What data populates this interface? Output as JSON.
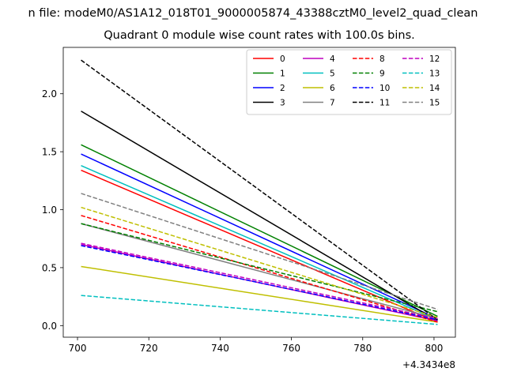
{
  "figure": {
    "suptitle": "n file: modeM0/AS1A12_018T01_9000005874_43388cztM0_level2_quad_clean"
  },
  "chart_data": {
    "type": "line",
    "title": "Quadrant 0 module wise count rates with 100.0s bins.",
    "xlabel": "",
    "ylabel": "",
    "x_offset_label": "+4.3434e8",
    "x": [
      701,
      801
    ],
    "xlim": [
      696,
      806
    ],
    "ylim": [
      -0.1,
      2.4
    ],
    "xticks": [
      700,
      720,
      740,
      760,
      780,
      800
    ],
    "yticks": [
      0.0,
      0.5,
      1.0,
      1.5,
      2.0
    ],
    "xtick_labels": [
      "700",
      "720",
      "740",
      "760",
      "780",
      "800"
    ],
    "ytick_labels": [
      "0.0",
      "0.5",
      "1.0",
      "1.5",
      "2.0"
    ],
    "grid": false,
    "legend": {
      "placement": "top-right",
      "columns": 4
    },
    "series": [
      {
        "name": "0",
        "values": [
          1.34,
          0.03
        ],
        "color": "#ff0000",
        "dash": "solid"
      },
      {
        "name": "1",
        "values": [
          1.56,
          0.08
        ],
        "color": "#008000",
        "dash": "solid"
      },
      {
        "name": "2",
        "values": [
          1.48,
          0.06
        ],
        "color": "#0000ff",
        "dash": "solid"
      },
      {
        "name": "3",
        "values": [
          1.85,
          0.04
        ],
        "color": "#000000",
        "dash": "solid"
      },
      {
        "name": "4",
        "values": [
          0.7,
          0.04
        ],
        "color": "#bf00bf",
        "dash": "solid"
      },
      {
        "name": "5",
        "values": [
          1.38,
          0.05
        ],
        "color": "#00bfbf",
        "dash": "solid"
      },
      {
        "name": "6",
        "values": [
          0.51,
          0.03
        ],
        "color": "#bfbf00",
        "dash": "solid"
      },
      {
        "name": "7",
        "values": [
          0.88,
          0.06
        ],
        "color": "#808080",
        "dash": "solid"
      },
      {
        "name": "8",
        "values": [
          0.95,
          0.03
        ],
        "color": "#ff0000",
        "dash": "dashed"
      },
      {
        "name": "9",
        "values": [
          0.88,
          0.12
        ],
        "color": "#008000",
        "dash": "dashed"
      },
      {
        "name": "10",
        "values": [
          0.69,
          0.05
        ],
        "color": "#0000ff",
        "dash": "dashed"
      },
      {
        "name": "11",
        "values": [
          2.29,
          0.05
        ],
        "color": "#000000",
        "dash": "dashed"
      },
      {
        "name": "12",
        "values": [
          0.71,
          0.06
        ],
        "color": "#bf00bf",
        "dash": "dashed"
      },
      {
        "name": "13",
        "values": [
          0.26,
          0.01
        ],
        "color": "#00bfbf",
        "dash": "dashed"
      },
      {
        "name": "14",
        "values": [
          1.02,
          0.07
        ],
        "color": "#bfbf00",
        "dash": "dashed"
      },
      {
        "name": "15",
        "values": [
          1.14,
          0.14
        ],
        "color": "#808080",
        "dash": "dashed"
      }
    ]
  }
}
